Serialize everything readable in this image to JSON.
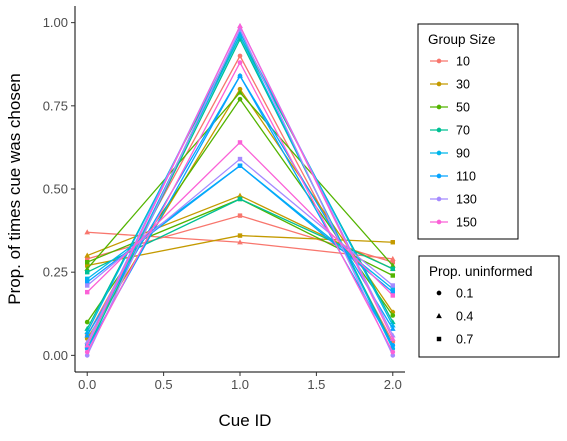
{
  "chart_data": {
    "type": "line",
    "title": "",
    "xlabel": "Cue ID",
    "ylabel": "Prop. of times cue was chosen",
    "x": [
      0.0,
      1.0,
      2.0
    ],
    "xlim": [
      -0.08,
      2.08
    ],
    "ylim": [
      -0.05,
      1.05
    ],
    "x_ticks": [
      0.0,
      0.5,
      1.0,
      1.5,
      2.0
    ],
    "x_tick_labels": [
      "0.0",
      "0.5",
      "1.0",
      "1.5",
      "2.0"
    ],
    "y_ticks": [
      0.0,
      0.25,
      0.5,
      0.75,
      1.0
    ],
    "y_tick_labels": [
      "0.00",
      "0.25",
      "0.50",
      "0.75",
      "1.00"
    ],
    "grid": false,
    "legend_placement": "right",
    "color_legend": {
      "title": "Group Size",
      "entries": [
        {
          "label": "10",
          "color": "#F8766D"
        },
        {
          "label": "30",
          "color": "#C49A00"
        },
        {
          "label": "50",
          "color": "#53B400"
        },
        {
          "label": "70",
          "color": "#00C094"
        },
        {
          "label": "90",
          "color": "#00B6EB"
        },
        {
          "label": "110",
          "color": "#06A4FF"
        },
        {
          "label": "130",
          "color": "#A58AFF"
        },
        {
          "label": "150",
          "color": "#FB61D7"
        }
      ]
    },
    "shape_legend": {
      "title": "Prop. uninformed",
      "entries": [
        {
          "label": "0.1",
          "shape": "circle"
        },
        {
          "label": "0.4",
          "shape": "triangle"
        },
        {
          "label": "0.7",
          "shape": "square"
        }
      ]
    },
    "series": [
      {
        "group": "10",
        "uninformed": "0.1",
        "values": [
          0.06,
          0.9,
          0.04
        ]
      },
      {
        "group": "10",
        "uninformed": "0.4",
        "values": [
          0.37,
          0.34,
          0.29
        ]
      },
      {
        "group": "10",
        "uninformed": "0.7",
        "values": [
          0.29,
          0.42,
          0.28
        ]
      },
      {
        "group": "30",
        "uninformed": "0.1",
        "values": [
          0.05,
          0.8,
          0.13
        ]
      },
      {
        "group": "30",
        "uninformed": "0.4",
        "values": [
          0.3,
          0.48,
          0.26
        ]
      },
      {
        "group": "30",
        "uninformed": "0.7",
        "values": [
          0.27,
          0.36,
          0.34
        ]
      },
      {
        "group": "50",
        "uninformed": "0.1",
        "values": [
          0.1,
          0.77,
          0.12
        ]
      },
      {
        "group": "50",
        "uninformed": "0.4",
        "values": [
          0.26,
          0.79,
          0.27
        ]
      },
      {
        "group": "50",
        "uninformed": "0.7",
        "values": [
          0.28,
          0.47,
          0.24
        ]
      },
      {
        "group": "70",
        "uninformed": "0.1",
        "values": [
          0.02,
          0.95,
          0.03
        ]
      },
      {
        "group": "70",
        "uninformed": "0.4",
        "values": [
          0.08,
          0.96,
          0.1
        ]
      },
      {
        "group": "70",
        "uninformed": "0.7",
        "values": [
          0.25,
          0.47,
          0.26
        ]
      },
      {
        "group": "90",
        "uninformed": "0.1",
        "values": [
          0.03,
          0.96,
          0.02
        ]
      },
      {
        "group": "90",
        "uninformed": "0.4",
        "values": [
          0.07,
          0.97,
          0.09
        ]
      },
      {
        "group": "90",
        "uninformed": "0.7",
        "values": [
          0.23,
          0.57,
          0.2
        ]
      },
      {
        "group": "110",
        "uninformed": "0.1",
        "values": [
          0.02,
          0.84,
          0.03
        ]
      },
      {
        "group": "110",
        "uninformed": "0.4",
        "values": [
          0.06,
          0.84,
          0.08
        ]
      },
      {
        "group": "110",
        "uninformed": "0.7",
        "values": [
          0.22,
          0.57,
          0.19
        ]
      },
      {
        "group": "130",
        "uninformed": "0.1",
        "values": [
          0.0,
          0.98,
          0.0
        ]
      },
      {
        "group": "130",
        "uninformed": "0.4",
        "values": [
          0.04,
          0.99,
          0.06
        ]
      },
      {
        "group": "130",
        "uninformed": "0.7",
        "values": [
          0.21,
          0.59,
          0.21
        ]
      },
      {
        "group": "150",
        "uninformed": "0.1",
        "values": [
          0.01,
          0.88,
          0.01
        ]
      },
      {
        "group": "150",
        "uninformed": "0.4",
        "values": [
          0.03,
          0.99,
          0.05
        ]
      },
      {
        "group": "150",
        "uninformed": "0.7",
        "values": [
          0.19,
          0.64,
          0.18
        ]
      }
    ]
  }
}
